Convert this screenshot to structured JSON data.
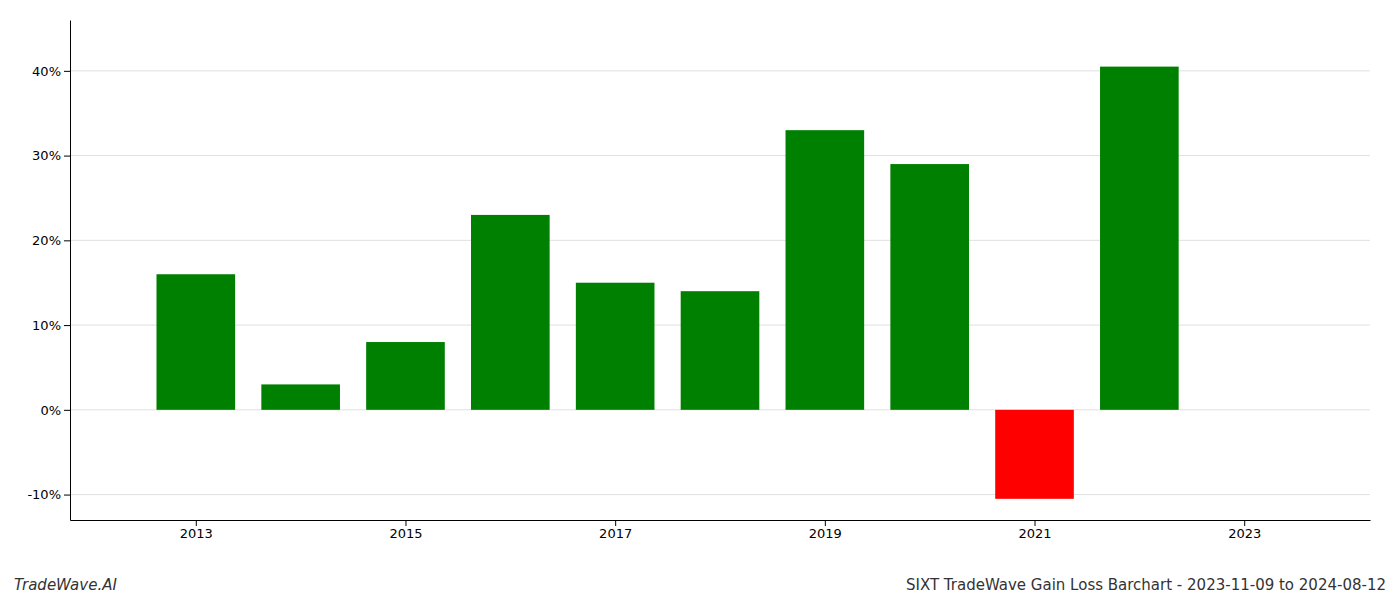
{
  "chart_data": {
    "type": "bar",
    "title": "SIXT TradeWave Gain Loss Barchart - 2023-11-09 to 2024-08-12",
    "annotations": [
      "TradeWave.AI"
    ],
    "x": [
      2013,
      2014,
      2015,
      2016,
      2017,
      2018,
      2019,
      2020,
      2021,
      2022
    ],
    "values": [
      16.0,
      3.0,
      8.0,
      23.0,
      15.0,
      14.0,
      33.0,
      29.0,
      -10.5,
      40.5
    ],
    "colors": [
      "#008000",
      "#008000",
      "#008000",
      "#008000",
      "#008000",
      "#008000",
      "#008000",
      "#008000",
      "#ff0000",
      "#008000"
    ],
    "xlim": [
      2011.8,
      2024.2
    ],
    "xticks": [
      2013,
      2015,
      2017,
      2019,
      2021,
      2023
    ],
    "ylim": [
      -13,
      46
    ],
    "yticks": [
      {
        "value": -10,
        "label": "-10%"
      },
      {
        "value": 0,
        "label": "0%"
      },
      {
        "value": 10,
        "label": "10%"
      },
      {
        "value": 20,
        "label": "20%"
      },
      {
        "value": 30,
        "label": "30%"
      },
      {
        "value": 40,
        "label": "40%"
      }
    ],
    "grid": true
  }
}
